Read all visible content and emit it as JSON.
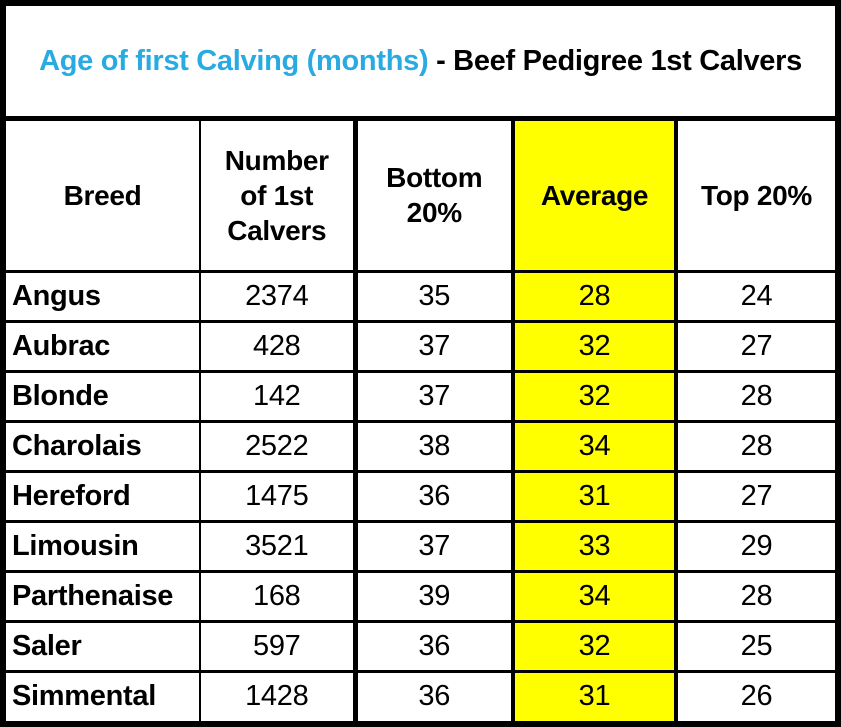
{
  "title": {
    "highlight_text": "Age of first Calving (months)",
    "rest_text": " - Beef Pedigree 1st Calvers"
  },
  "colors": {
    "title_highlight": "#29ABE2",
    "average_column_bg": "#FFFF00",
    "border": "#000000"
  },
  "chart_data": {
    "type": "table",
    "title": "Age of first Calving (months) - Beef Pedigree 1st Calvers",
    "columns": [
      "Breed",
      "Number of 1st Calvers",
      "Bottom 20%",
      "Average",
      "Top 20%"
    ],
    "highlighted_column": "Average",
    "rows": [
      [
        "Angus",
        "2374",
        "35",
        "28",
        "24"
      ],
      [
        "Aubrac",
        "428",
        "37",
        "32",
        "27"
      ],
      [
        "Blonde",
        "142",
        "37",
        "32",
        "28"
      ],
      [
        "Charolais",
        "2522",
        "38",
        "34",
        "28"
      ],
      [
        "Hereford",
        "1475",
        "36",
        "31",
        "27"
      ],
      [
        "Limousin",
        "3521",
        "37",
        "33",
        "29"
      ],
      [
        "Parthenaise",
        "168",
        "39",
        "34",
        "28"
      ],
      [
        "Saler",
        "597",
        "36",
        "32",
        "25"
      ],
      [
        "Simmental",
        "1428",
        "36",
        "31",
        "26"
      ]
    ]
  }
}
